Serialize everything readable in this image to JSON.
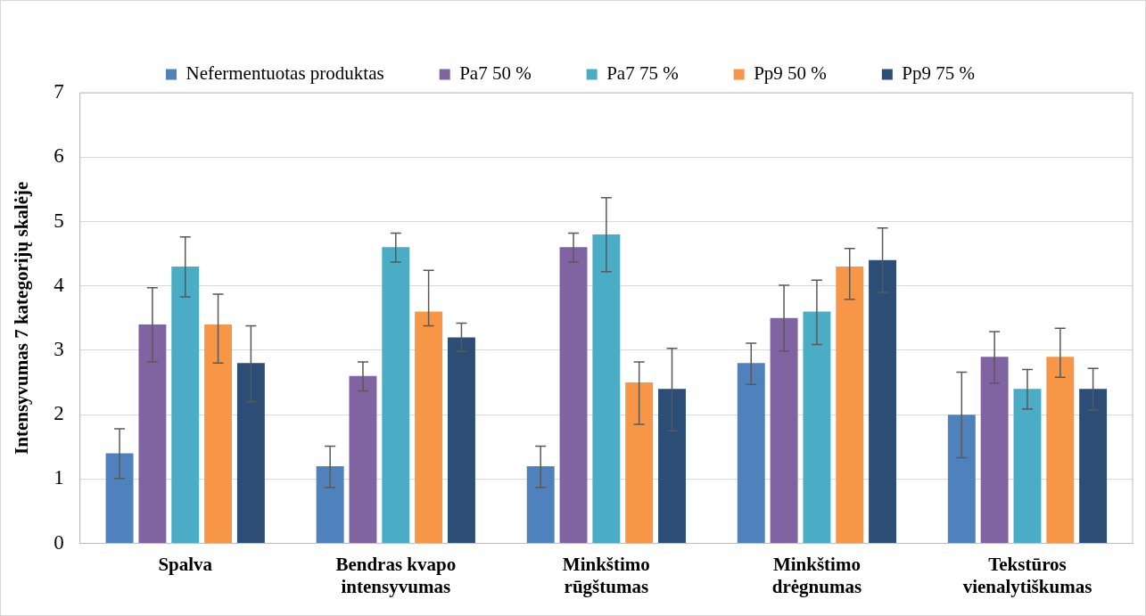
{
  "chart_data": {
    "type": "bar",
    "ylabel": "Intensyvumas 7 kategorijų skalėje",
    "categories": [
      "Spalva",
      "Bendras kvapo\nintensyvumas",
      "Minkštimo\nrūgštumas",
      "Minkštimo\ndrėgnumas",
      "Tekstūros\nvienalytiškumas"
    ],
    "series": [
      {
        "name": "Nefermentuotas produktas",
        "color": "#4f81bd",
        "values": [
          1.4,
          1.2,
          1.2,
          2.8,
          2.0
        ],
        "errors": [
          [
            1.01,
            1.78
          ],
          [
            0.87,
            1.51
          ],
          [
            0.87,
            1.51
          ],
          [
            2.47,
            3.11
          ],
          [
            1.33,
            2.66
          ]
        ]
      },
      {
        "name": "Pa7 50 %",
        "color": "#8064a2",
        "values": [
          3.4,
          2.6,
          4.6,
          3.5,
          2.9
        ],
        "errors": [
          [
            2.82,
            3.97
          ],
          [
            2.37,
            2.82
          ],
          [
            4.37,
            4.82
          ],
          [
            2.99,
            4.01
          ],
          [
            2.49,
            3.29
          ]
        ]
      },
      {
        "name": "Pa7 75 %",
        "color": "#4bacc6",
        "values": [
          4.3,
          4.6,
          4.8,
          3.6,
          2.4
        ],
        "errors": [
          [
            3.83,
            4.76
          ],
          [
            4.37,
            4.82
          ],
          [
            4.22,
            5.37
          ],
          [
            3.09,
            4.09
          ],
          [
            2.09,
            2.7
          ]
        ]
      },
      {
        "name": "Pp9 50 %",
        "color": "#f79646",
        "values": [
          3.4,
          3.6,
          2.5,
          4.3,
          2.9
        ],
        "errors": [
          [
            2.8,
            3.87
          ],
          [
            3.38,
            4.24
          ],
          [
            1.85,
            2.82
          ],
          [
            3.79,
            4.58
          ],
          [
            2.58,
            3.34
          ]
        ]
      },
      {
        "name": "Pp9 75 %",
        "color": "#2c4d75",
        "values": [
          2.8,
          3.2,
          2.4,
          4.4,
          2.4
        ],
        "errors": [
          [
            2.2,
            3.38
          ],
          [
            2.98,
            3.42
          ],
          [
            1.75,
            3.03
          ],
          [
            3.9,
            4.9
          ],
          [
            2.07,
            2.72
          ]
        ]
      }
    ],
    "ylim": [
      0,
      7
    ],
    "yticks": [
      0,
      1,
      2,
      3,
      4,
      5,
      6,
      7
    ],
    "grid": "y",
    "legend": "top"
  }
}
